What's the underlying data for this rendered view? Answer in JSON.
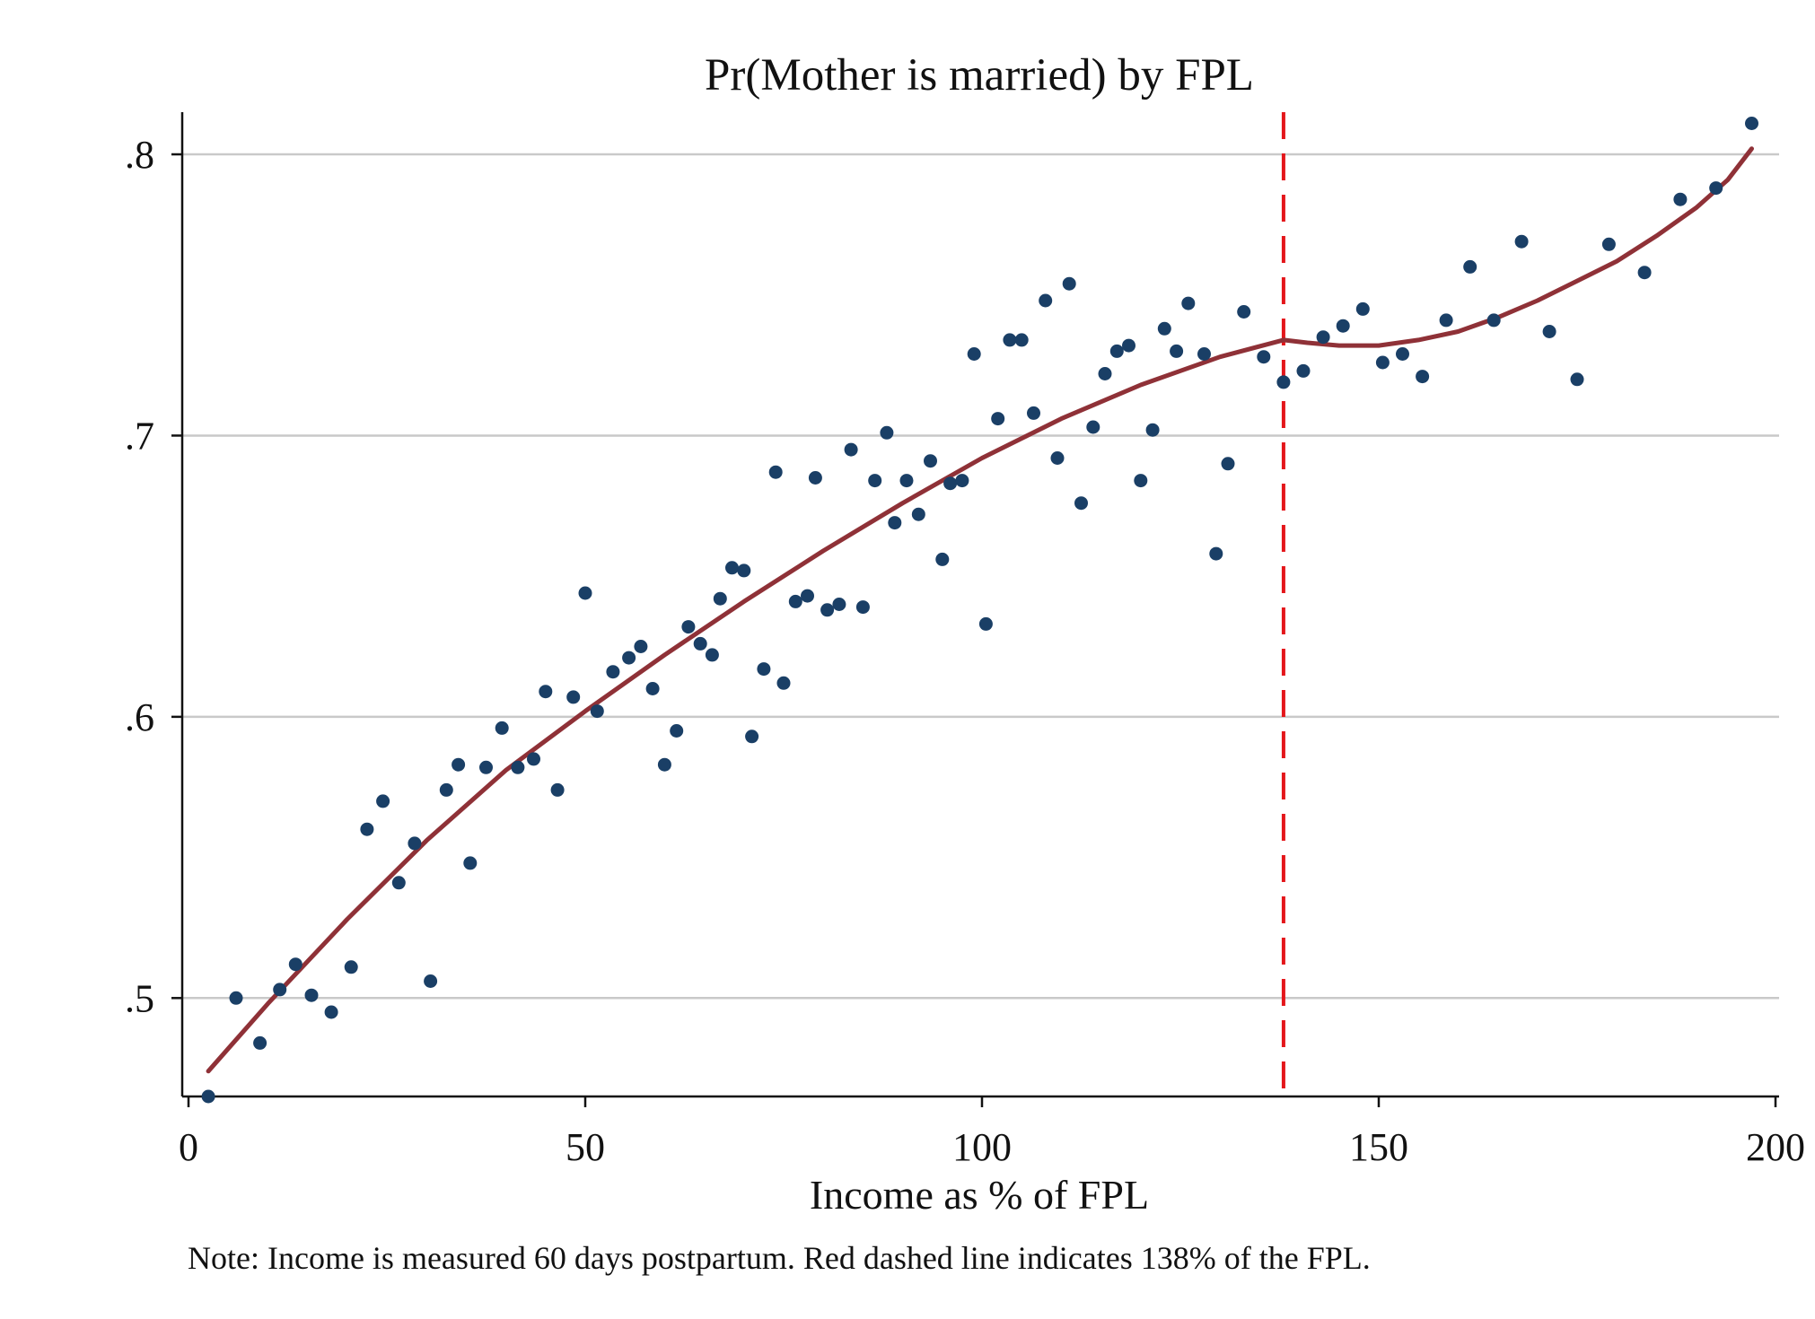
{
  "chart_data": {
    "type": "scatter",
    "title": "Pr(Mother is married) by FPL",
    "xlabel": "Income as % of FPL",
    "ylabel": "",
    "xlim": [
      0,
      200
    ],
    "ylim": [
      0.465,
      0.815
    ],
    "x_ticks": [
      {
        "value": 0,
        "label": "0"
      },
      {
        "value": 50,
        "label": "50"
      },
      {
        "value": 100,
        "label": "100"
      },
      {
        "value": 150,
        "label": "150"
      },
      {
        "value": 200,
        "label": "200"
      }
    ],
    "y_ticks": [
      {
        "value": 0.5,
        "label": ".5"
      },
      {
        "value": 0.6,
        "label": ".6"
      },
      {
        "value": 0.7,
        "label": ".7"
      },
      {
        "value": 0.8,
        "label": ".8"
      }
    ],
    "grid": "horizontal",
    "note": "Note: Income is measured 60 days postpartum. Red dashed line indicates 138% of the FPL.",
    "cutoff": 138,
    "colors": {
      "points": "#1a3f66",
      "fit": "#8f3137",
      "cutoff": "#e4161b",
      "grid": "#c9c9c9",
      "axis": "#111111"
    },
    "series": [
      {
        "type": "scatter",
        "points": [
          [
            2.5,
            0.465
          ],
          [
            6,
            0.5
          ],
          [
            9,
            0.484
          ],
          [
            11.5,
            0.503
          ],
          [
            13.5,
            0.512
          ],
          [
            15.5,
            0.501
          ],
          [
            18,
            0.495
          ],
          [
            20.5,
            0.511
          ],
          [
            22.5,
            0.56
          ],
          [
            24.5,
            0.57
          ],
          [
            26.5,
            0.541
          ],
          [
            28.5,
            0.555
          ],
          [
            30.5,
            0.506
          ],
          [
            32.5,
            0.574
          ],
          [
            34,
            0.583
          ],
          [
            35.5,
            0.548
          ],
          [
            37.5,
            0.582
          ],
          [
            39.5,
            0.596
          ],
          [
            41.5,
            0.582
          ],
          [
            43.5,
            0.585
          ],
          [
            45,
            0.609
          ],
          [
            46.5,
            0.574
          ],
          [
            48.5,
            0.607
          ],
          [
            50,
            0.644
          ],
          [
            51.5,
            0.602
          ],
          [
            53.5,
            0.616
          ],
          [
            55.5,
            0.621
          ],
          [
            57,
            0.625
          ],
          [
            58.5,
            0.61
          ],
          [
            60,
            0.583
          ],
          [
            61.5,
            0.595
          ],
          [
            63,
            0.632
          ],
          [
            64.5,
            0.626
          ],
          [
            66,
            0.622
          ],
          [
            67,
            0.642
          ],
          [
            68.5,
            0.653
          ],
          [
            70,
            0.652
          ],
          [
            71,
            0.593
          ],
          [
            72.5,
            0.617
          ],
          [
            74,
            0.687
          ],
          [
            75,
            0.612
          ],
          [
            76.5,
            0.641
          ],
          [
            78,
            0.643
          ],
          [
            79,
            0.685
          ],
          [
            80.5,
            0.638
          ],
          [
            82,
            0.64
          ],
          [
            83.5,
            0.695
          ],
          [
            85,
            0.639
          ],
          [
            86.5,
            0.684
          ],
          [
            88,
            0.701
          ],
          [
            89,
            0.669
          ],
          [
            90.5,
            0.684
          ],
          [
            92,
            0.672
          ],
          [
            93.5,
            0.691
          ],
          [
            95,
            0.656
          ],
          [
            96,
            0.683
          ],
          [
            97.5,
            0.684
          ],
          [
            99,
            0.729
          ],
          [
            100.5,
            0.633
          ],
          [
            102,
            0.706
          ],
          [
            103.5,
            0.734
          ],
          [
            105,
            0.734
          ],
          [
            106.5,
            0.708
          ],
          [
            108,
            0.748
          ],
          [
            109.5,
            0.692
          ],
          [
            111,
            0.754
          ],
          [
            112.5,
            0.676
          ],
          [
            114,
            0.703
          ],
          [
            115.5,
            0.722
          ],
          [
            117,
            0.73
          ],
          [
            118.5,
            0.732
          ],
          [
            120,
            0.684
          ],
          [
            121.5,
            0.702
          ],
          [
            123,
            0.738
          ],
          [
            124.5,
            0.73
          ],
          [
            126,
            0.747
          ],
          [
            128,
            0.729
          ],
          [
            129.5,
            0.658
          ],
          [
            131,
            0.69
          ],
          [
            133,
            0.744
          ],
          [
            135.5,
            0.728
          ],
          [
            138,
            0.719
          ],
          [
            140.5,
            0.723
          ],
          [
            143,
            0.735
          ],
          [
            145.5,
            0.739
          ],
          [
            148,
            0.745
          ],
          [
            150.5,
            0.726
          ],
          [
            153,
            0.729
          ],
          [
            155.5,
            0.721
          ],
          [
            158.5,
            0.741
          ],
          [
            161.5,
            0.76
          ],
          [
            164.5,
            0.741
          ],
          [
            168,
            0.769
          ],
          [
            171.5,
            0.737
          ],
          [
            175,
            0.72
          ],
          [
            179,
            0.768
          ],
          [
            183.5,
            0.758
          ],
          [
            188,
            0.784
          ],
          [
            192.5,
            0.788
          ],
          [
            197,
            0.811
          ]
        ]
      },
      {
        "type": "line",
        "points": [
          [
            2.5,
            0.474
          ],
          [
            10,
            0.498
          ],
          [
            20,
            0.528
          ],
          [
            30,
            0.556
          ],
          [
            40,
            0.581
          ],
          [
            50,
            0.602
          ],
          [
            60,
            0.622
          ],
          [
            70,
            0.641
          ],
          [
            80,
            0.659
          ],
          [
            90,
            0.676
          ],
          [
            100,
            0.692
          ],
          [
            110,
            0.706
          ],
          [
            120,
            0.718
          ],
          [
            130,
            0.728
          ],
          [
            138,
            0.734
          ]
        ]
      },
      {
        "type": "line",
        "points": [
          [
            138,
            0.734
          ],
          [
            141,
            0.733
          ],
          [
            145,
            0.732
          ],
          [
            150,
            0.732
          ],
          [
            155,
            0.734
          ],
          [
            160,
            0.737
          ],
          [
            165,
            0.742
          ],
          [
            170,
            0.748
          ],
          [
            175,
            0.755
          ],
          [
            180,
            0.762
          ],
          [
            185,
            0.771
          ],
          [
            190,
            0.781
          ],
          [
            194,
            0.791
          ],
          [
            197,
            0.802
          ]
        ]
      }
    ]
  }
}
